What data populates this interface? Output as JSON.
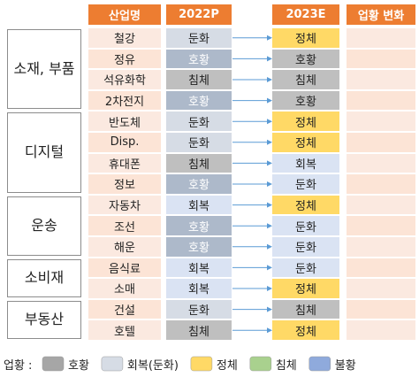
{
  "table": {
    "header": [
      "산업명",
      "2022P",
      "2023E",
      "업황 변화"
    ],
    "groups": [
      {
        "label": "소재, 부품",
        "rows": [
          [
            "철강",
            "둔화",
            "정체"
          ],
          [
            "정유",
            "호황",
            "호황"
          ],
          [
            "석유화학",
            "침체",
            "침체"
          ],
          [
            "2차전지",
            "호황",
            "호황"
          ]
        ]
      },
      {
        "label": "디지털",
        "rows": [
          [
            "반도체",
            "둔화",
            "정체"
          ],
          [
            "Disp.",
            "둔화",
            "정체"
          ],
          [
            "휴대폰",
            "침체",
            "회복"
          ],
          [
            "정보",
            "호황",
            "둔화"
          ]
        ]
      },
      {
        "label": "운송",
        "rows": [
          [
            "자동차",
            "회복",
            "정체"
          ],
          [
            "조선",
            "호황",
            "둔화"
          ],
          [
            "해운",
            "호황",
            "둔화"
          ]
        ]
      },
      {
        "label": "소비재",
        "rows": [
          [
            "음식료",
            "회복",
            "둔화"
          ],
          [
            "소매",
            "회복",
            "정체"
          ]
        ]
      },
      {
        "label": "부동산",
        "rows": [
          [
            "건설",
            "둔화",
            "침체"
          ],
          [
            "호텔",
            "침체",
            "정체"
          ]
        ]
      }
    ]
  },
  "legend": {
    "title": "업황 :",
    "items": [
      "호황",
      "회복(둔화)",
      "정체",
      "침체",
      "불황"
    ]
  }
}
